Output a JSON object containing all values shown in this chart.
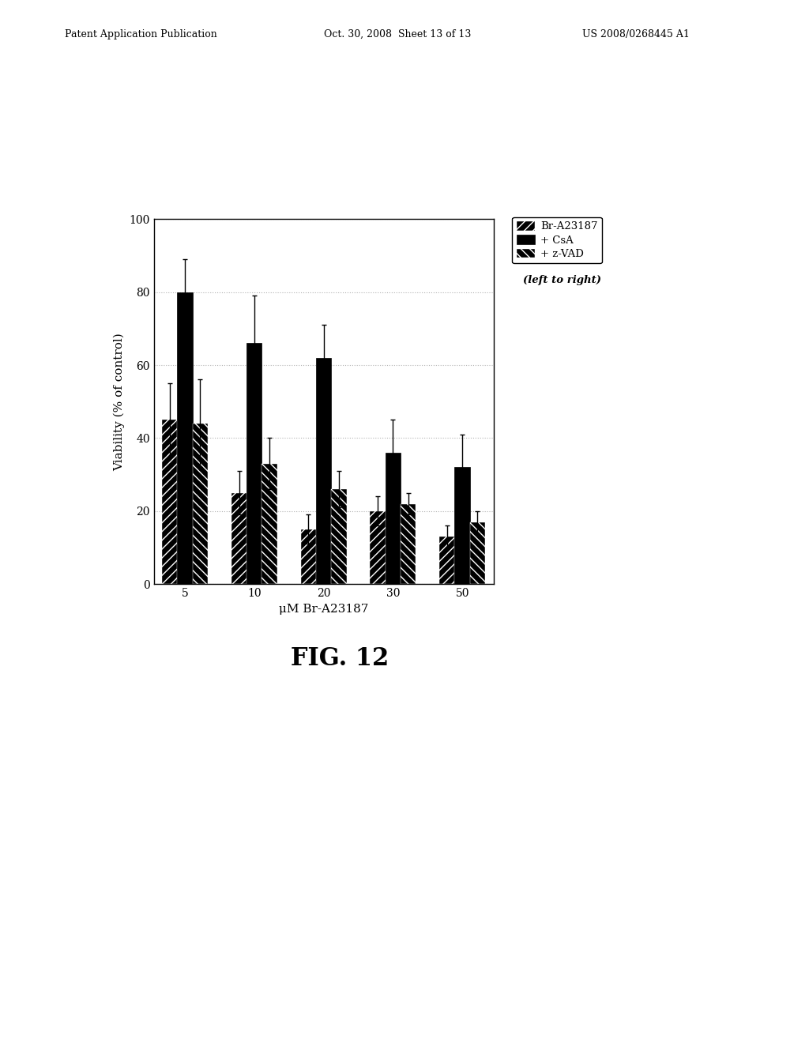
{
  "x_labels": [
    "5",
    "10",
    "20",
    "30",
    "50"
  ],
  "xlabel": "μM Br-A23187",
  "ylabel": "Viability (% of control)",
  "ylim": [
    0,
    100
  ],
  "yticks": [
    0,
    20,
    40,
    60,
    80,
    100
  ],
  "bar_width": 0.22,
  "values": {
    "Br-A23187": [
      45,
      25,
      15,
      20,
      13
    ],
    "+CsA": [
      80,
      66,
      62,
      36,
      32
    ],
    "+z-VAD": [
      44,
      33,
      26,
      22,
      17
    ]
  },
  "errors": {
    "Br-A23187": [
      10,
      6,
      4,
      4,
      3
    ],
    "+CsA": [
      9,
      13,
      9,
      9,
      9
    ],
    "+z-VAD": [
      12,
      7,
      5,
      3,
      3
    ]
  },
  "legend_labels": [
    "Br-A23187",
    "+ CsA",
    "+ z-VAD"
  ],
  "legend_note": "(left to right)",
  "background_color": "#ffffff",
  "figure_caption": "FIG. 12",
  "header_left": "Patent Application Publication",
  "header_mid": "Oct. 30, 2008  Sheet 13 of 13",
  "header_right": "US 2008/0268445 A1",
  "plot_bgcolor": "#ffffff",
  "grid_color": "#aaaaaa",
  "bar_color_solid": "#1a1a1a",
  "bar_edge_color": "#000000"
}
